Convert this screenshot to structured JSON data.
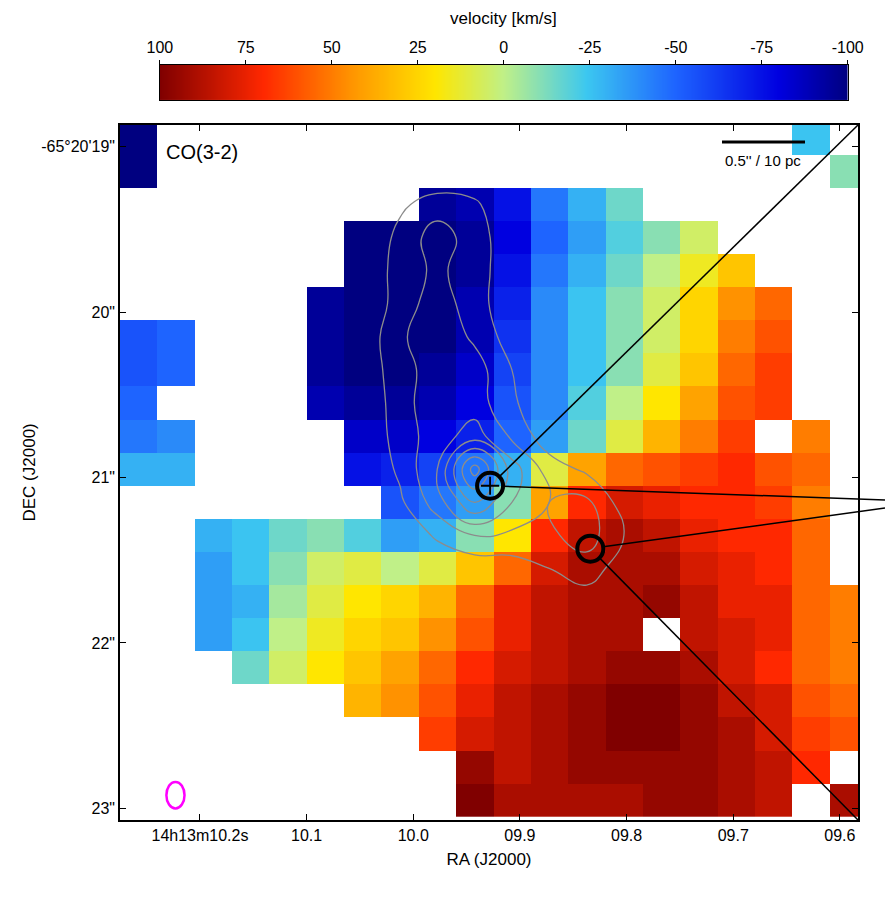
{
  "chart_data": {
    "type": "heatmap",
    "title": "CO(3-2)",
    "xlabel": "RA (J2000)",
    "ylabel": "DEC (J2000)",
    "scale_bar": "0.5'' / 10 pc",
    "grid": false,
    "xlim": [
      10.275,
      9.583
    ],
    "ylim": [
      23.07,
      18.87
    ],
    "xticks": [
      {
        "value": 10.2,
        "label": "14h13m10.2s"
      },
      10.1,
      {
        "value": 10.0,
        "label": "10.0"
      },
      {
        "value": 9.9,
        "label": "09.9"
      },
      {
        "value": 9.8,
        "label": "09.8"
      },
      {
        "value": 9.7,
        "label": "09.7"
      },
      {
        "value": 9.6,
        "label": "09.6"
      }
    ],
    "yticks": [
      {
        "value": 19,
        "label": "-65°20'19\""
      },
      {
        "value": 20,
        "label": "20\""
      },
      {
        "value": 21,
        "label": "21\""
      },
      {
        "value": 22,
        "label": "22\""
      },
      {
        "value": 23,
        "label": "23\""
      }
    ],
    "colorbar": {
      "title": "velocity [km/s]",
      "range": [
        100,
        -100
      ],
      "ticks": [
        100,
        75,
        50,
        25,
        0,
        -25,
        -50,
        -75,
        -100
      ]
    },
    "x": [
      10.2575,
      10.2225,
      10.1875,
      10.1525,
      10.1175,
      10.0825,
      10.0475,
      10.0125,
      9.9775,
      9.9425,
      9.9075,
      9.8725,
      9.8375,
      9.8025,
      9.7675,
      9.7325,
      9.6975,
      9.6625,
      9.6275,
      9.5925
    ],
    "y": [
      18.95,
      19.15,
      19.35,
      19.55,
      19.75,
      19.95,
      20.15,
      20.35,
      20.55,
      20.75,
      20.95,
      21.15,
      21.35,
      21.55,
      21.75,
      21.95,
      22.15,
      22.35,
      22.55,
      22.75,
      22.95
    ],
    "cells": [
      [
        -100,
        null,
        null,
        null,
        null,
        null,
        null,
        null,
        null,
        null,
        null,
        null,
        null,
        null,
        null,
        null,
        null,
        null,
        -25,
        null
      ],
      [
        -100,
        null,
        null,
        null,
        null,
        null,
        null,
        null,
        null,
        null,
        null,
        null,
        null,
        null,
        null,
        null,
        null,
        null,
        null,
        -10
      ],
      [
        null,
        null,
        null,
        null,
        null,
        null,
        null,
        null,
        -95,
        -90,
        -75,
        -45,
        -30,
        -15,
        null,
        null,
        null,
        null,
        null,
        null
      ],
      [
        null,
        null,
        null,
        null,
        null,
        null,
        -100,
        -100,
        -100,
        -95,
        -80,
        -50,
        -35,
        -20,
        -10,
        5,
        null,
        null,
        null,
        null
      ],
      [
        null,
        null,
        null,
        null,
        null,
        null,
        -100,
        -100,
        -100,
        -95,
        -75,
        -45,
        -30,
        -15,
        0,
        15,
        30,
        null,
        null,
        null
      ],
      [
        null,
        null,
        null,
        null,
        null,
        -95,
        -100,
        -100,
        -100,
        -90,
        -70,
        -40,
        -25,
        -10,
        5,
        25,
        45,
        55,
        null,
        null
      ],
      [
        -55,
        -50,
        null,
        null,
        null,
        -95,
        -100,
        -100,
        -100,
        -90,
        -65,
        -40,
        -25,
        -10,
        5,
        25,
        50,
        60,
        null,
        null
      ],
      [
        -55,
        -50,
        null,
        null,
        null,
        -95,
        -100,
        -100,
        -95,
        -85,
        -60,
        -40,
        -25,
        -10,
        10,
        30,
        55,
        65,
        null,
        null
      ],
      [
        -50,
        null,
        null,
        null,
        null,
        -90,
        -95,
        -95,
        -90,
        -80,
        -55,
        -40,
        -20,
        0,
        20,
        40,
        60,
        65,
        null,
        null
      ],
      [
        -45,
        -40,
        null,
        null,
        null,
        null,
        -85,
        -85,
        -80,
        -70,
        -50,
        -35,
        -15,
        10,
        35,
        50,
        65,
        null,
        50,
        null
      ],
      [
        -30,
        -30,
        null,
        null,
        null,
        null,
        -75,
        -70,
        -60,
        -45,
        -30,
        10,
        40,
        55,
        60,
        65,
        70,
        60,
        55,
        null
      ],
      [
        null,
        null,
        null,
        null,
        null,
        null,
        null,
        -55,
        -45,
        -35,
        -10,
        40,
        70,
        80,
        75,
        70,
        70,
        65,
        50,
        null
      ],
      [
        null,
        null,
        -30,
        -25,
        -15,
        -10,
        -20,
        -35,
        -30,
        -10,
        20,
        70,
        85,
        90,
        85,
        75,
        70,
        70,
        55,
        null
      ],
      [
        null,
        null,
        -35,
        -25,
        -10,
        5,
        10,
        0,
        10,
        30,
        55,
        80,
        90,
        90,
        90,
        80,
        75,
        70,
        55,
        null
      ],
      [
        null,
        null,
        -35,
        -30,
        -5,
        10,
        20,
        25,
        35,
        55,
        75,
        85,
        90,
        90,
        95,
        85,
        75,
        75,
        55,
        50
      ],
      [
        null,
        null,
        -35,
        -25,
        0,
        15,
        25,
        30,
        45,
        60,
        75,
        85,
        90,
        90,
        null,
        85,
        80,
        75,
        55,
        50
      ],
      [
        null,
        null,
        null,
        -15,
        5,
        20,
        30,
        40,
        55,
        70,
        80,
        85,
        90,
        95,
        95,
        90,
        80,
        70,
        55,
        50
      ],
      [
        null,
        null,
        null,
        null,
        null,
        null,
        35,
        45,
        60,
        75,
        85,
        90,
        95,
        100,
        100,
        95,
        85,
        80,
        60,
        55
      ],
      [
        null,
        null,
        null,
        null,
        null,
        null,
        null,
        null,
        65,
        80,
        85,
        90,
        95,
        100,
        100,
        95,
        90,
        80,
        65,
        60
      ],
      [
        null,
        null,
        null,
        null,
        null,
        null,
        null,
        null,
        null,
        95,
        85,
        90,
        95,
        95,
        95,
        95,
        90,
        85,
        70,
        null
      ],
      [
        null,
        null,
        null,
        null,
        null,
        null,
        null,
        null,
        null,
        100,
        90,
        90,
        90,
        90,
        95,
        95,
        90,
        85,
        null,
        90
      ]
    ],
    "continuum": {
      "x": [
        10.0475,
        10.0125,
        9.9775,
        9.9425,
        9.9075,
        9.8725,
        9.8375,
        9.8025,
        9.7675
      ],
      "y": [
        19.15,
        19.35,
        19.55,
        19.75,
        19.95,
        20.15,
        20.35,
        20.55,
        20.75,
        20.95,
        21.15,
        21.35,
        21.55,
        21.75
      ],
      "cells": [
        [
          0,
          0,
          0,
          0,
          0,
          0,
          0,
          0,
          0
        ],
        [
          0,
          0.8,
          1.5,
          1.2,
          0,
          0,
          0,
          0,
          0
        ],
        [
          0,
          1.3,
          2.5,
          1.5,
          0.3,
          0,
          0,
          0,
          0
        ],
        [
          0,
          1.5,
          2.2,
          1.5,
          0.3,
          0,
          0,
          0,
          0
        ],
        [
          0,
          1.5,
          2.5,
          1.5,
          0.2,
          0,
          0,
          0,
          0
        ],
        [
          0.3,
          1.8,
          2.8,
          1.8,
          0.5,
          0,
          0,
          0,
          0
        ],
        [
          0.3,
          1.6,
          2.5,
          2.5,
          1.0,
          0,
          0,
          0,
          0
        ],
        [
          0.2,
          1.5,
          2.8,
          2.5,
          1.2,
          0,
          0,
          0,
          0
        ],
        [
          0,
          1.5,
          2.5,
          3.5,
          1.8,
          0.4,
          0,
          0,
          0
        ],
        [
          0,
          1.2,
          3,
          7.5,
          3.5,
          1.5,
          0.8,
          0,
          0
        ],
        [
          0,
          0.8,
          2.5,
          5,
          3,
          2,
          2.2,
          0.5,
          0
        ],
        [
          0,
          0,
          1.2,
          2,
          1.8,
          1.8,
          2.5,
          1.0,
          0
        ],
        [
          0,
          0,
          0,
          0.3,
          0.5,
          1.0,
          1.5,
          0.5,
          0
        ],
        [
          0,
          0,
          0,
          0,
          0,
          0,
          0.5,
          0,
          0
        ]
      ],
      "levels": [
        1,
        2,
        3,
        4,
        5,
        6,
        7
      ]
    },
    "points": [
      {
        "x": 9.928,
        "y": 21.05,
        "marker": "circle-cross"
      },
      {
        "x": 9.834,
        "y": 21.43,
        "marker": "circle"
      }
    ],
    "beam": {
      "x": 10.223,
      "y": 22.92,
      "width": 0.017,
      "height": 0.16
    }
  }
}
